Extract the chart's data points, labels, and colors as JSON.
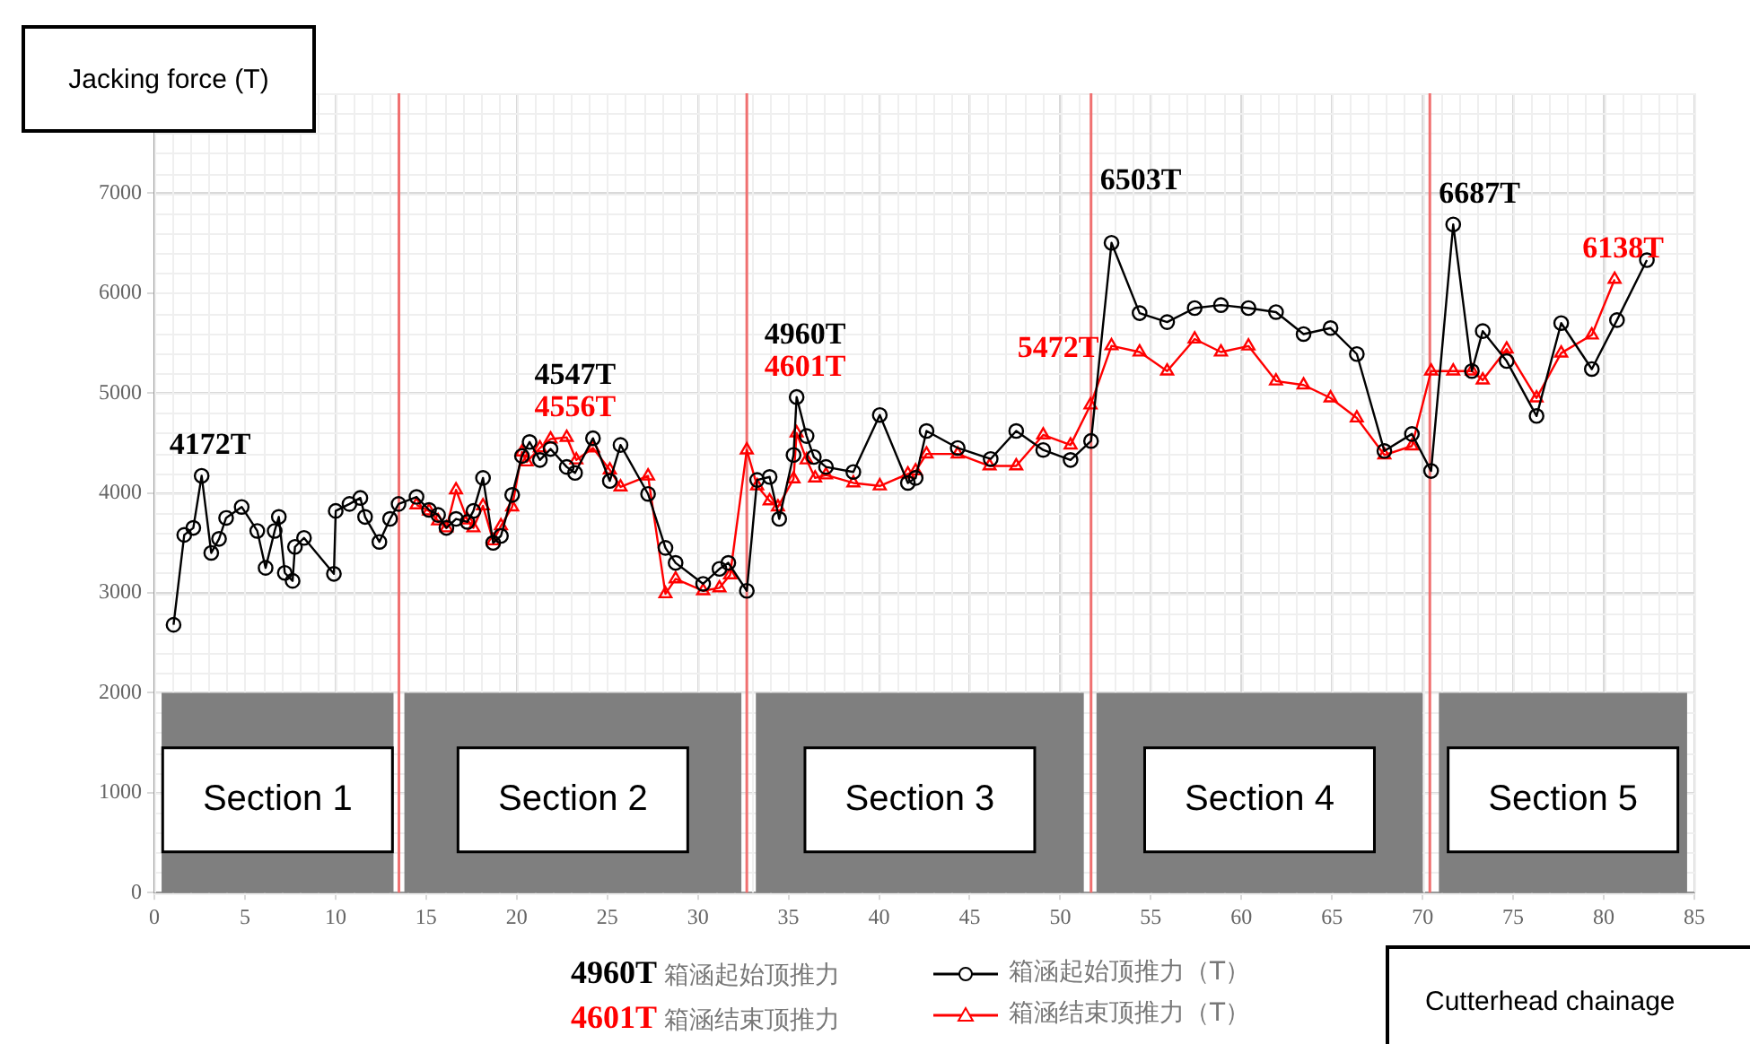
{
  "chart_data": {
    "type": "line",
    "xlabel": "Cutterhead chainage",
    "ylabel": "Jacking force (T)",
    "xlim": [
      0,
      85
    ],
    "xticks": [
      0,
      5,
      10,
      15,
      20,
      25,
      30,
      35,
      40,
      45,
      50,
      55,
      60,
      65,
      70,
      75,
      80,
      85
    ],
    "ylim": [
      0,
      8000
    ],
    "yticks": [
      0,
      1000,
      2000,
      3000,
      4000,
      5000,
      6000,
      7000
    ],
    "grid": true,
    "legend": "bottom",
    "line_style": "solid",
    "series": [
      {
        "name": "箱涵起始顶推力（T）",
        "color": "#000000",
        "marker": "circle",
        "x": [
          1.06,
          1.65,
          2.15,
          2.61,
          3.14,
          3.57,
          3.96,
          4.82,
          5.68,
          6.14,
          6.64,
          6.87,
          7.2,
          7.63,
          7.76,
          8.26,
          9.91,
          10.01,
          10.77,
          11.37,
          11.63,
          12.42,
          13.01,
          13.48,
          14.47,
          15.16,
          15.66,
          16.12,
          16.65,
          17.28,
          17.61,
          18.14,
          18.7,
          19.13,
          19.75,
          20.29,
          20.71,
          21.28,
          21.87,
          22.76,
          23.22,
          24.21,
          25.14,
          25.73,
          27.25,
          28.21,
          28.77,
          30.29,
          31.19,
          31.68,
          32.7,
          33.27,
          33.96,
          34.49,
          35.28,
          35.45,
          36.0,
          36.4,
          37.07,
          38.58,
          40.04,
          41.59,
          42.02,
          42.62,
          44.34,
          46.16,
          47.57,
          49.06,
          50.57,
          51.7,
          52.83,
          54.38,
          55.9,
          57.42,
          58.87,
          60.39,
          61.91,
          63.43,
          64.92,
          66.37,
          67.89,
          69.41,
          70.47,
          71.69,
          72.72,
          73.32,
          74.64,
          76.29,
          77.65,
          79.34,
          80.73,
          82.38
        ],
        "values": [
          2680,
          3580,
          3650,
          4172,
          3400,
          3540,
          3750,
          3860,
          3620,
          3250,
          3620,
          3760,
          3200,
          3120,
          3460,
          3550,
          3190,
          3820,
          3890,
          3950,
          3760,
          3510,
          3740,
          3890,
          3960,
          3830,
          3780,
          3650,
          3740,
          3710,
          3820,
          4150,
          3500,
          3570,
          3980,
          4370,
          4510,
          4330,
          4440,
          4260,
          4200,
          4547,
          4120,
          4480,
          3990,
          3450,
          3300,
          3090,
          3240,
          3300,
          3020,
          4130,
          4160,
          3740,
          4380,
          4960,
          4570,
          4360,
          4260,
          4210,
          4780,
          4100,
          4150,
          4620,
          4450,
          4340,
          4620,
          4430,
          4330,
          4520,
          6503,
          5800,
          5710,
          5850,
          5880,
          5850,
          5810,
          5590,
          5650,
          5390,
          4420,
          4590,
          4220,
          6687,
          5220,
          5620,
          5320,
          4770,
          5700,
          5240,
          5730,
          6330
        ]
      },
      {
        "name": "箱涵结束顶推力（T）",
        "color": "#ff0000",
        "marker": "triangle",
        "x": [
          14.47,
          15.16,
          15.66,
          16.12,
          16.65,
          17.28,
          17.61,
          18.14,
          18.7,
          19.13,
          19.75,
          20.29,
          20.55,
          21.28,
          21.87,
          22.76,
          23.29,
          24.21,
          25.14,
          25.73,
          27.25,
          28.21,
          28.77,
          30.29,
          31.19,
          31.78,
          32.7,
          33.27,
          33.96,
          34.42,
          35.28,
          35.45,
          36.0,
          36.47,
          37.07,
          38.58,
          40.04,
          41.59,
          42.02,
          42.62,
          44.34,
          46.1,
          47.57,
          49.06,
          50.57,
          51.67,
          52.83,
          54.38,
          55.9,
          57.42,
          58.87,
          60.39,
          61.91,
          63.43,
          64.92,
          66.37,
          67.89,
          69.41,
          70.47,
          71.69,
          72.72,
          73.32,
          74.64,
          76.29,
          77.65,
          79.34,
          80.6
        ],
        "values": [
          3880,
          3820,
          3720,
          3650,
          4030,
          3730,
          3650,
          3870,
          3520,
          3670,
          3860,
          4410,
          4310,
          4450,
          4540,
          4556,
          4330,
          4450,
          4230,
          4060,
          4170,
          2990,
          3140,
          3020,
          3050,
          3180,
          4430,
          4070,
          3920,
          3860,
          4140,
          4601,
          4330,
          4150,
          4180,
          4100,
          4070,
          4190,
          4220,
          4390,
          4390,
          4270,
          4270,
          4580,
          4480,
          4880,
          5472,
          5410,
          5220,
          5540,
          5410,
          5470,
          5120,
          5080,
          4950,
          4750,
          4380,
          4470,
          5220,
          5220,
          5220,
          5130,
          5440,
          4950,
          5400,
          5580,
          6138
        ]
      }
    ],
    "ref_lines": [
      {
        "axis": "x",
        "value": 13.5,
        "color": "#f07070"
      },
      {
        "axis": "x",
        "value": 32.7,
        "color": "#f07070"
      },
      {
        "axis": "x",
        "value": 51.7,
        "color": "#f07070"
      },
      {
        "axis": "x",
        "value": 70.4,
        "color": "#f07070"
      }
    ],
    "bands": [
      {
        "axis": "x",
        "from": 0.4,
        "to": 13.2,
        "label": "Section 1",
        "color": "#7f7f7f"
      },
      {
        "axis": "x",
        "from": 13.8,
        "to": 32.4,
        "label": "Section 2",
        "color": "#7f7f7f"
      },
      {
        "axis": "x",
        "from": 33.2,
        "to": 51.3,
        "label": "Section 3",
        "color": "#7f7f7f"
      },
      {
        "axis": "x",
        "from": 52.0,
        "to": 70.0,
        "label": "Section 4",
        "color": "#7f7f7f"
      },
      {
        "axis": "x",
        "from": 70.9,
        "to": 84.6,
        "label": "Section 5",
        "color": "#7f7f7f"
      }
    ],
    "annotations": [
      {
        "text": "4172T",
        "x": 2.61,
        "y": 4172
      },
      {
        "text": "4547T",
        "x": 24.21,
        "y": 4547
      },
      {
        "text": "4556T",
        "x": 22.76,
        "y": 4556
      },
      {
        "text": "4960T",
        "x": 35.45,
        "y": 4960
      },
      {
        "text": "4601T",
        "x": 35.45,
        "y": 4601
      },
      {
        "text": "6503T",
        "x": 52.83,
        "y": 6503
      },
      {
        "text": "5472T",
        "x": 52.83,
        "y": 5472
      },
      {
        "text": "6687T",
        "x": 71.69,
        "y": 6687
      },
      {
        "text": "6138T",
        "x": 80.6,
        "y": 6138
      },
      "4960T 箱涵起始顶推力",
      "4601T 箱涵结束顶推力"
    ]
  }
}
